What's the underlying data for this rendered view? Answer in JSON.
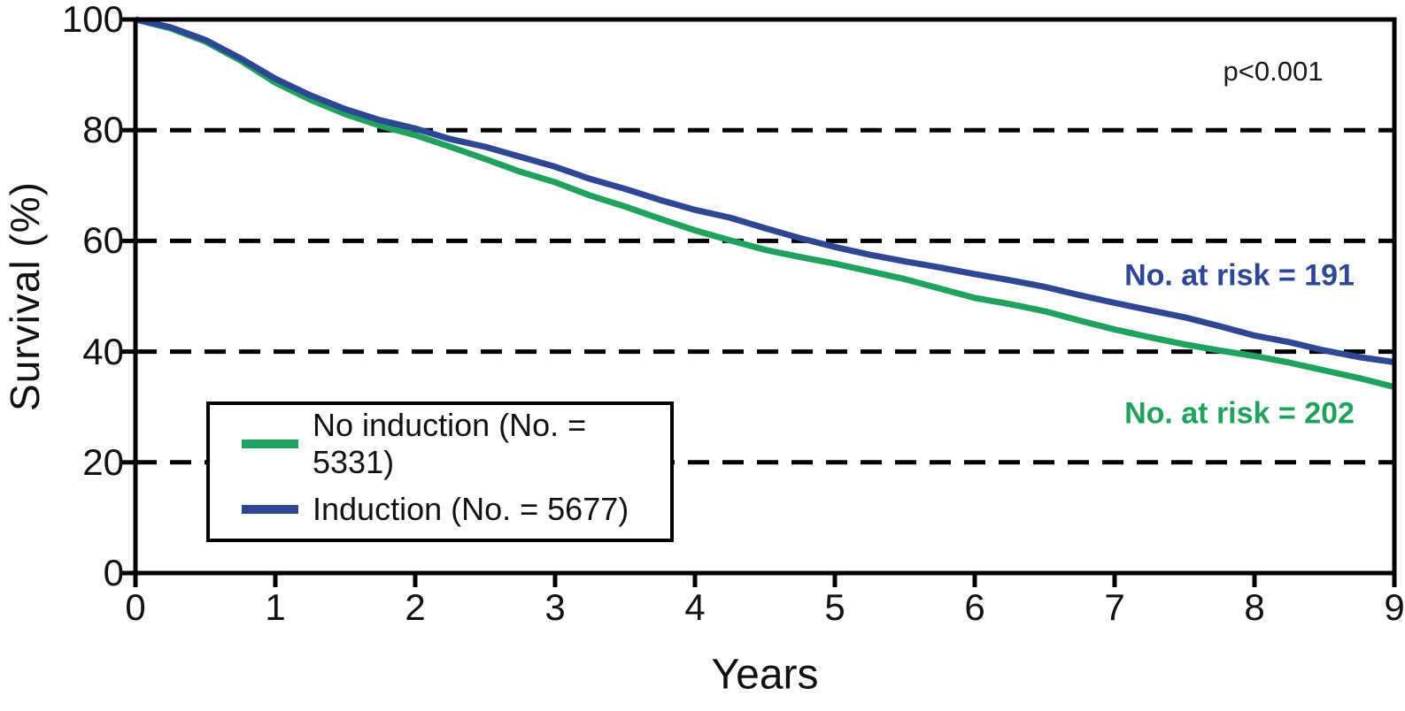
{
  "chart_data": {
    "type": "line",
    "title": "",
    "xlabel": "Years",
    "ylabel": "Survival (%)",
    "xlim": [
      0,
      9
    ],
    "ylim": [
      0,
      100
    ],
    "x_ticks": [
      0,
      1,
      2,
      3,
      4,
      5,
      6,
      7,
      8,
      9
    ],
    "y_ticks": [
      0,
      20,
      40,
      60,
      80,
      100
    ],
    "gridlines_y": [
      20,
      40,
      60,
      80
    ],
    "grid_style": "dashed",
    "legend_position": "lower-left",
    "axis_color": "#000000",
    "p_value_annotation": "p<0.001",
    "series": [
      {
        "name": "no-induction",
        "label": "No induction (No. = 5331)",
        "color": "#1FA35C",
        "at_risk_label": "No. at risk = 202",
        "x": [
          0,
          0.25,
          0.5,
          0.75,
          1,
          1.25,
          1.5,
          1.75,
          2,
          2.25,
          2.5,
          2.75,
          3,
          3.25,
          3.5,
          3.75,
          4,
          4.25,
          4.5,
          4.75,
          5,
          5.25,
          5.5,
          5.75,
          6,
          6.25,
          6.5,
          6.75,
          7,
          7.25,
          7.5,
          7.75,
          8,
          8.25,
          8.5,
          8.75,
          9
        ],
        "y": [
          100,
          98.4,
          96.0,
          92.6,
          88.6,
          85.5,
          82.9,
          80.8,
          79.1,
          77.0,
          74.8,
          72.5,
          70.6,
          68.2,
          66.2,
          64.0,
          61.9,
          60.1,
          58.4,
          57.1,
          55.9,
          54.5,
          53.1,
          51.4,
          49.7,
          48.6,
          47.3,
          45.6,
          44.0,
          42.6,
          41.3,
          40.2,
          39.2,
          38.0,
          36.6,
          35.2,
          33.6
        ]
      },
      {
        "name": "induction",
        "label": "Induction (No. = 5677)",
        "color": "#2D4795",
        "at_risk_label": "No. at risk = 191",
        "x": [
          0,
          0.25,
          0.5,
          0.75,
          1,
          1.25,
          1.5,
          1.75,
          2,
          2.25,
          2.5,
          2.75,
          3,
          3.25,
          3.5,
          3.75,
          4,
          4.25,
          4.5,
          4.75,
          5,
          5.25,
          5.5,
          5.75,
          6,
          6.25,
          6.5,
          6.75,
          7,
          7.25,
          7.5,
          7.75,
          8,
          8.25,
          8.5,
          8.75,
          9
        ],
        "y": [
          100,
          98.6,
          96.3,
          93.0,
          89.3,
          86.3,
          83.8,
          81.8,
          80.3,
          78.4,
          77.0,
          75.2,
          73.4,
          71.2,
          69.4,
          67.4,
          65.6,
          64.2,
          62.3,
          60.5,
          58.9,
          57.5,
          56.3,
          55.2,
          54.0,
          52.9,
          51.7,
          50.2,
          48.8,
          47.5,
          46.2,
          44.6,
          42.9,
          41.7,
          40.2,
          39.0,
          38.1
        ]
      }
    ]
  }
}
